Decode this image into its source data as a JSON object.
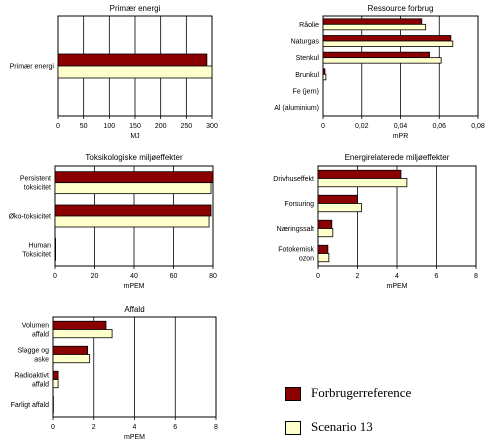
{
  "colors": {
    "series_a": "#8b0000",
    "series_b": "#ffffcc",
    "axis": "#000000"
  },
  "legend": {
    "series_a": "Forbrugerreference",
    "series_b": "Scenario 13"
  },
  "chart_data": [
    {
      "type": "bar",
      "orientation": "horizontal",
      "title": "Primær energi",
      "xlabel": "MJ",
      "categories": [
        [
          "Primær energi"
        ]
      ],
      "xlim": [
        0,
        300
      ],
      "xticks": [
        0,
        50,
        100,
        150,
        200,
        250,
        300
      ],
      "tick_labels": [
        "0",
        "50",
        "100",
        "150",
        "200",
        "250",
        "300"
      ],
      "grid": true,
      "series": [
        {
          "name": "Forbrugerreference",
          "values": [
            290
          ]
        },
        {
          "name": "Scenario 13",
          "values": [
            300
          ]
        }
      ]
    },
    {
      "type": "bar",
      "orientation": "horizontal",
      "title": "Ressource forbrug",
      "xlabel": "mPR",
      "categories": [
        [
          "Råolie"
        ],
        [
          "Naturgas"
        ],
        [
          "Stenkul"
        ],
        [
          "Brunkul"
        ],
        [
          "Fe (jern)"
        ],
        [
          "Al (aluminium)"
        ]
      ],
      "xlim": [
        0,
        0.08
      ],
      "xticks": [
        0,
        0.02,
        0.04,
        0.06,
        0.08
      ],
      "tick_labels": [
        "0",
        "0,02",
        "0,04",
        "0,06",
        "0,08"
      ],
      "grid": true,
      "series": [
        {
          "name": "Forbrugerreference",
          "values": [
            0.051,
            0.066,
            0.055,
            0.001,
            0,
            0
          ]
        },
        {
          "name": "Scenario 13",
          "values": [
            0.053,
            0.067,
            0.061,
            0.0015,
            0,
            0
          ]
        }
      ]
    },
    {
      "type": "bar",
      "orientation": "horizontal",
      "title": "Toksikologiske miljøeffekter",
      "xlabel": "mPEM",
      "categories": [
        [
          "Persistent",
          "toksicitet"
        ],
        [
          "Øko-toksicitet"
        ],
        [
          "Human",
          "Toksicitet"
        ]
      ],
      "xlim": [
        0,
        80
      ],
      "xticks": [
        0,
        20,
        40,
        60,
        80
      ],
      "tick_labels": [
        "0",
        "20",
        "40",
        "60",
        "80"
      ],
      "grid": true,
      "series": [
        {
          "name": "Forbrugerreference",
          "values": [
            80,
            79,
            0.3
          ]
        },
        {
          "name": "Scenario 13",
          "values": [
            79,
            78,
            0.3
          ]
        }
      ]
    },
    {
      "type": "bar",
      "orientation": "horizontal",
      "title": "Energirelaterede miljøeffekter",
      "xlabel": "mPEM",
      "categories": [
        [
          "Drivhuseffekt"
        ],
        [
          "Forsuring"
        ],
        [
          "Næringssalt"
        ],
        [
          "Fotokemisk",
          "ozon"
        ]
      ],
      "xlim": [
        0,
        8
      ],
      "xticks": [
        0,
        2,
        4,
        6,
        8
      ],
      "tick_labels": [
        "0",
        "2",
        "4",
        "6",
        "8"
      ],
      "grid": true,
      "series": [
        {
          "name": "Forbrugerreference",
          "values": [
            4.2,
            2.0,
            0.7,
            0.5
          ]
        },
        {
          "name": "Scenario 13",
          "values": [
            4.5,
            2.2,
            0.75,
            0.55
          ]
        }
      ]
    },
    {
      "type": "bar",
      "orientation": "horizontal",
      "title": "Affald",
      "xlabel": "mPEM",
      "categories": [
        [
          "Volumen",
          "affald"
        ],
        [
          "Slagge og",
          "aske"
        ],
        [
          "Radioaktivt",
          "affald"
        ],
        [
          "Farligt affald"
        ]
      ],
      "xlim": [
        0,
        8
      ],
      "xticks": [
        0,
        2,
        4,
        6,
        8
      ],
      "tick_labels": [
        "0",
        "2",
        "4",
        "6",
        "8"
      ],
      "grid": true,
      "series": [
        {
          "name": "Forbrugerreference",
          "values": [
            2.6,
            1.7,
            0.25,
            0.02
          ]
        },
        {
          "name": "Scenario 13",
          "values": [
            2.9,
            1.8,
            0.25,
            0.02
          ]
        }
      ]
    }
  ]
}
